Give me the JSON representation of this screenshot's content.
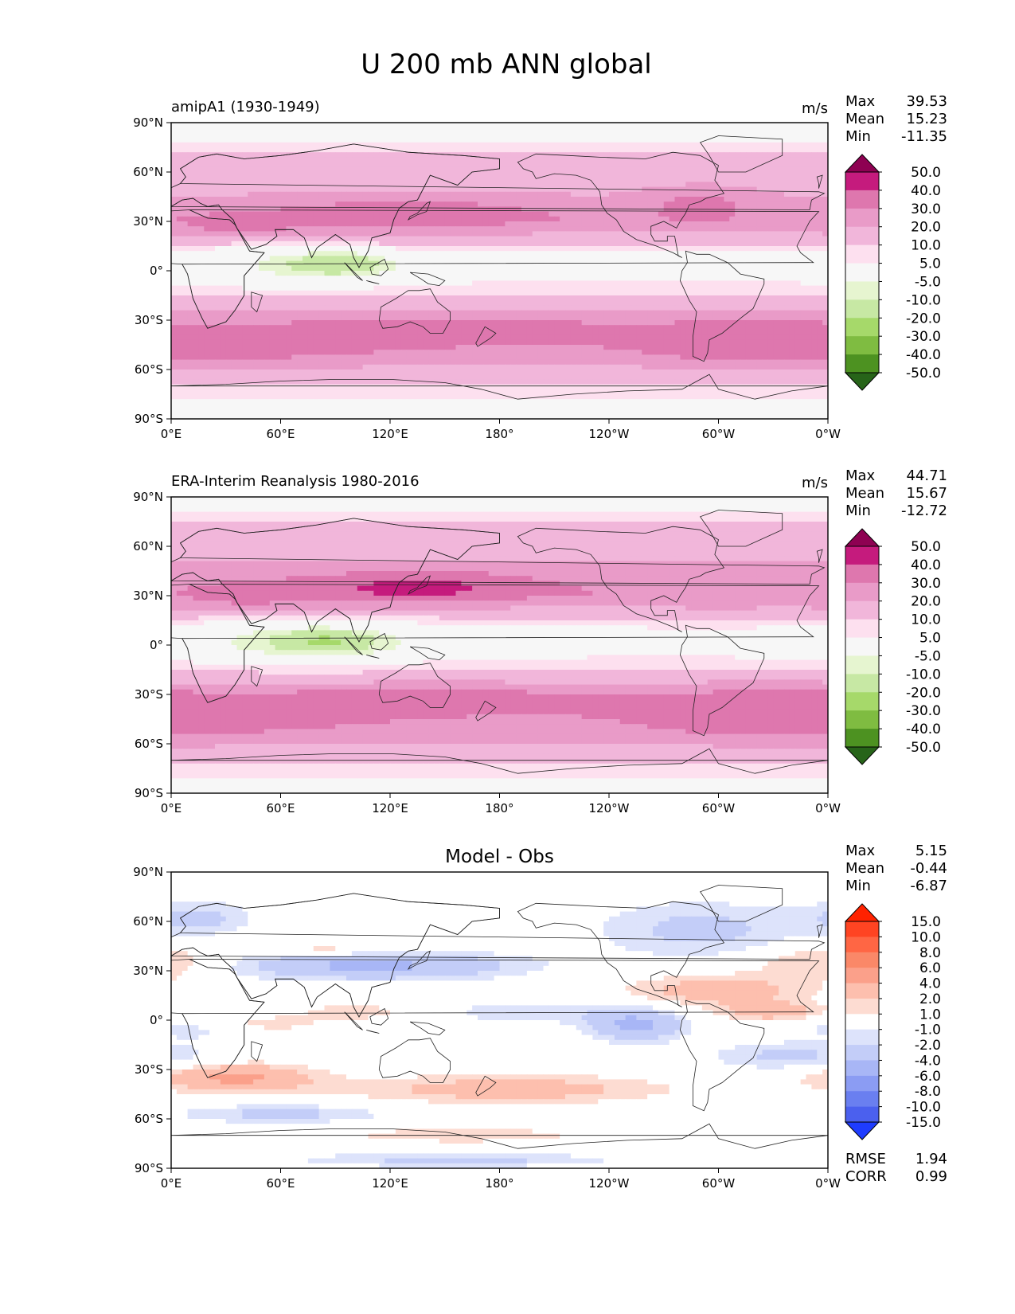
{
  "figure_title": "U 200 mb ANN global",
  "chart_data": [
    {
      "type": "heatmap",
      "panel": "model",
      "title": "amipA1 (1930-1949)",
      "units": "m/s",
      "stats": {
        "max_label": "Max",
        "max": "39.53",
        "mean_label": "Mean",
        "mean": "15.23",
        "min_label": "Min",
        "min": "-11.35"
      },
      "x_ticks": [
        "0°E",
        "60°E",
        "120°E",
        "180°",
        "120°W",
        "60°W",
        "0°W"
      ],
      "y_ticks": [
        "90°N",
        "60°N",
        "30°N",
        "0°",
        "30°S",
        "60°S",
        "90°S"
      ],
      "xlim": [
        0,
        360
      ],
      "ylim": [
        -90,
        90
      ],
      "colorbar": {
        "levels": [
          "50.0",
          "40.0",
          "30.0",
          "20.0",
          "10.0",
          "5.0",
          "-5.0",
          "-10.0",
          "-20.0",
          "-30.0",
          "-40.0",
          "-50.0"
        ],
        "colors": [
          "#8e0152",
          "#c51b7d",
          "#de77ae",
          "#e99bc8",
          "#f1b6da",
          "#fde0ef",
          "#f7f7f7",
          "#e6f5d0",
          "#c7e8a4",
          "#a6d96a",
          "#7fbc41",
          "#4d9221",
          "#276419"
        ]
      },
      "bands": [
        {
          "lat": 85,
          "value": 0
        },
        {
          "lat": 72,
          "value": 10
        },
        {
          "lat": 58,
          "value": 12
        },
        {
          "lat": 44,
          "value": 20
        },
        {
          "lat": 32,
          "value": 28
        },
        {
          "lat": 20,
          "value": 14
        },
        {
          "lat": 10,
          "value": 3
        },
        {
          "lat": 0,
          "value": 1
        },
        {
          "lat": -12,
          "value": 8
        },
        {
          "lat": -24,
          "value": 16
        },
        {
          "lat": -38,
          "value": 30
        },
        {
          "lat": -52,
          "value": 25
        },
        {
          "lat": -64,
          "value": 12
        },
        {
          "lat": -77,
          "value": 6
        },
        {
          "lat": -86,
          "value": 0
        }
      ],
      "features": [
        {
          "lon": 130,
          "lat": 34,
          "dlon": 55,
          "dlat": 8,
          "value": 36
        },
        {
          "lon": 35,
          "lat": 28,
          "dlon": 25,
          "dlat": 5,
          "value": 33
        },
        {
          "lon": 290,
          "lat": 40,
          "dlon": 22,
          "dlat": 8,
          "value": 33
        },
        {
          "lon": 75,
          "lat": 3,
          "dlon": 40,
          "dlat": 8,
          "value": -6
        },
        {
          "lon": 92,
          "lat": 4,
          "dlon": 18,
          "dlat": 4,
          "value": -13
        },
        {
          "lon": 25,
          "lat": -45,
          "dlon": 70,
          "dlat": 8,
          "value": 34
        },
        {
          "lon": 155,
          "lat": -35,
          "dlon": 70,
          "dlat": 7,
          "value": 34
        },
        {
          "lon": 315,
          "lat": -42,
          "dlon": 45,
          "dlat": 9,
          "value": 34
        }
      ]
    },
    {
      "type": "heatmap",
      "panel": "obs",
      "title": "ERA-Interim Reanalysis 1980-2016",
      "units": "m/s",
      "stats": {
        "max_label": "Max",
        "max": "44.71",
        "mean_label": "Mean",
        "mean": "15.67",
        "min_label": "Min",
        "min": "-12.72"
      },
      "x_ticks": [
        "0°E",
        "60°E",
        "120°E",
        "180°",
        "120°W",
        "60°W",
        "0°W"
      ],
      "y_ticks": [
        "90°N",
        "60°N",
        "30°N",
        "0°",
        "30°S",
        "60°S",
        "90°S"
      ],
      "xlim": [
        0,
        360
      ],
      "ylim": [
        -90,
        90
      ],
      "colorbar": {
        "levels": [
          "50.0",
          "40.0",
          "30.0",
          "20.0",
          "10.0",
          "5.0",
          "-5.0",
          "-10.0",
          "-20.0",
          "-30.0",
          "-40.0",
          "-50.0"
        ],
        "colors": [
          "#8e0152",
          "#c51b7d",
          "#de77ae",
          "#e99bc8",
          "#f1b6da",
          "#fde0ef",
          "#f7f7f7",
          "#e6f5d0",
          "#c7e8a4",
          "#a6d96a",
          "#7fbc41",
          "#4d9221",
          "#276419"
        ]
      },
      "bands": [
        {
          "lat": 86,
          "value": 0
        },
        {
          "lat": 74,
          "value": 10
        },
        {
          "lat": 60,
          "value": 14
        },
        {
          "lat": 46,
          "value": 22
        },
        {
          "lat": 32,
          "value": 30
        },
        {
          "lat": 20,
          "value": 14
        },
        {
          "lat": 10,
          "value": 4
        },
        {
          "lat": 0,
          "value": 0
        },
        {
          "lat": -12,
          "value": 8
        },
        {
          "lat": -24,
          "value": 16
        },
        {
          "lat": -38,
          "value": 30
        },
        {
          "lat": -52,
          "value": 26
        },
        {
          "lat": -66,
          "value": 14
        },
        {
          "lat": -78,
          "value": 6
        },
        {
          "lat": -87,
          "value": 0
        }
      ],
      "features": [
        {
          "lon": 135,
          "lat": 35,
          "dlon": 45,
          "dlat": 7,
          "value": 43
        },
        {
          "lon": 40,
          "lat": 30,
          "dlon": 30,
          "dlat": 6,
          "value": 33
        },
        {
          "lon": 300,
          "lat": 35,
          "dlon": 35,
          "dlat": 10,
          "value": 24
        },
        {
          "lon": 75,
          "lat": 2,
          "dlon": 45,
          "dlat": 9,
          "value": -8
        },
        {
          "lon": 85,
          "lat": 2,
          "dlon": 18,
          "dlat": 4,
          "value": -14
        },
        {
          "lon": 20,
          "lat": -42,
          "dlon": 70,
          "dlat": 9,
          "value": 34
        },
        {
          "lon": 150,
          "lat": -32,
          "dlon": 70,
          "dlat": 6,
          "value": 34
        },
        {
          "lon": 320,
          "lat": -40,
          "dlon": 45,
          "dlat": 10,
          "value": 34
        }
      ]
    },
    {
      "type": "heatmap",
      "panel": "difference",
      "title": "Model - Obs",
      "units": "",
      "stats": {
        "max_label": "Max",
        "max": "5.15",
        "mean_label": "Mean",
        "mean": "-0.44",
        "min_label": "Min",
        "min": "-6.87"
      },
      "metrics": {
        "rmse_label": "RMSE",
        "rmse": "1.94",
        "corr_label": "CORR",
        "corr": "0.99"
      },
      "x_ticks": [
        "0°E",
        "60°E",
        "120°E",
        "180°",
        "120°W",
        "60°W",
        "0°W"
      ],
      "y_ticks": [
        "90°N",
        "60°N",
        "30°N",
        "0°",
        "30°S",
        "60°S",
        "90°S"
      ],
      "xlim": [
        0,
        360
      ],
      "ylim": [
        -90,
        90
      ],
      "colorbar": {
        "levels": [
          "15.0",
          "10.0",
          "8.0",
          "6.0",
          "4.0",
          "2.0",
          "1.0",
          "-1.0",
          "-2.0",
          "-4.0",
          "-6.0",
          "-8.0",
          "-10.0",
          "-15.0"
        ],
        "colors": [
          "#ff2200",
          "#ff4422",
          "#ff6644",
          "#fa8868",
          "#fba08a",
          "#fdbfae",
          "#fddcd2",
          "#ffffff",
          "#dde3fb",
          "#c3cdf8",
          "#a8b6f6",
          "#8b9cf3",
          "#6a7ff0",
          "#4b60ee",
          "#1e3cff"
        ]
      },
      "bands": [
        {
          "lat": 90,
          "value": 0
        },
        {
          "lat": 0,
          "value": 0
        },
        {
          "lat": -90,
          "value": 0
        }
      ],
      "features": [
        {
          "lon": 110,
          "lat": 33,
          "dlon": 55,
          "dlat": 6,
          "value": -4.5
        },
        {
          "lon": 290,
          "lat": 55,
          "dlon": 40,
          "dlat": 12,
          "value": -2.5
        },
        {
          "lon": 15,
          "lat": 62,
          "dlon": 20,
          "dlat": 7,
          "value": -2.5
        },
        {
          "lon": 170,
          "lat": 5,
          "dlon": 50,
          "dlat": 5,
          "value": -2.5
        },
        {
          "lon": 255,
          "lat": -3,
          "dlon": 18,
          "dlat": 7,
          "value": -4.5
        },
        {
          "lon": 60,
          "lat": -57,
          "dlon": 40,
          "dlat": 4,
          "value": -2.5
        },
        {
          "lon": 20,
          "lat": -4,
          "dlon": 25,
          "dlat": 5,
          "value": -2.5
        },
        {
          "lon": 155,
          "lat": -85,
          "dlon": 60,
          "dlat": 3,
          "value": -2.5
        },
        {
          "lon": 340,
          "lat": -22,
          "dlon": 30,
          "dlat": 6,
          "value": -2.5
        },
        {
          "lon": 300,
          "lat": 18,
          "dlon": 35,
          "dlat": 7,
          "value": 3
        },
        {
          "lon": 355,
          "lat": 35,
          "dlon": 25,
          "dlat": 7,
          "value": 2.5
        },
        {
          "lon": 120,
          "lat": 5,
          "dlon": 40,
          "dlat": 5,
          "value": 2.5
        },
        {
          "lon": 40,
          "lat": -3,
          "dlon": 25,
          "dlat": 4,
          "value": 2.5
        },
        {
          "lon": 35,
          "lat": -35,
          "dlon": 30,
          "dlat": 6,
          "value": 4.5
        },
        {
          "lon": 185,
          "lat": -42,
          "dlon": 60,
          "dlat": 6,
          "value": 3
        },
        {
          "lon": 330,
          "lat": 5,
          "dlon": 20,
          "dlat": 4,
          "value": 3
        },
        {
          "lon": 85,
          "lat": 43,
          "dlon": 18,
          "dlat": 3,
          "value": 2
        },
        {
          "lon": 160,
          "lat": -70,
          "dlon": 60,
          "dlat": 4,
          "value": 1.5
        }
      ]
    }
  ]
}
